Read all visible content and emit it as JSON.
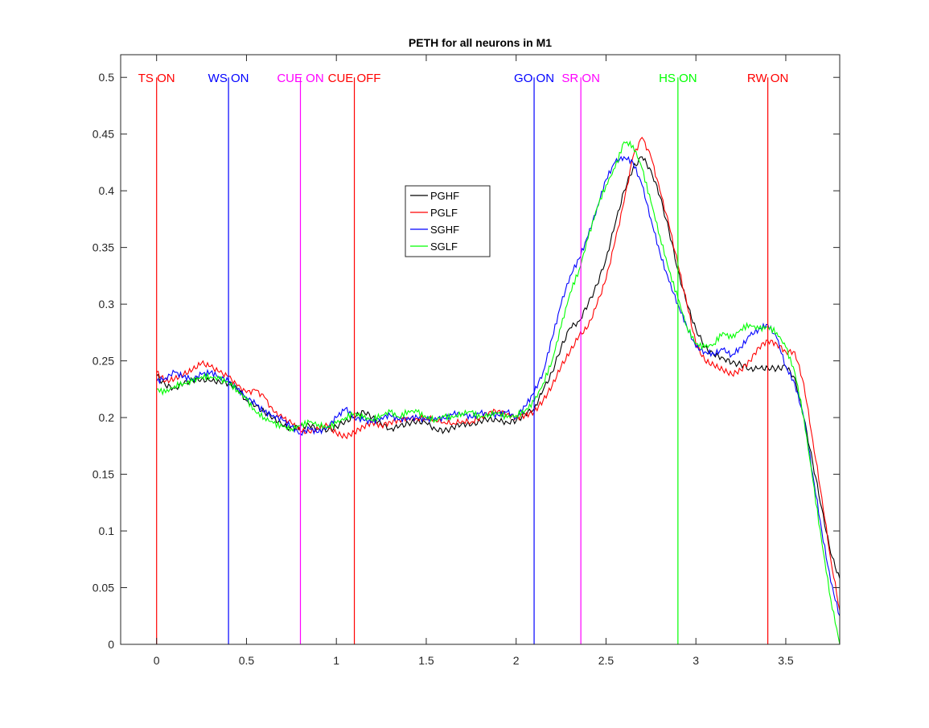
{
  "chart_data": {
    "type": "line",
    "title": "PETH for all neurons in M1",
    "xlabel": "",
    "ylabel": "",
    "xlim": [
      -0.2,
      3.8
    ],
    "ylim": [
      0,
      0.52
    ],
    "xticks": [
      0,
      0.5,
      1,
      1.5,
      2,
      2.5,
      3,
      3.5
    ],
    "xtick_labels": [
      "0",
      "0.5",
      "1",
      "1.5",
      "2",
      "2.5",
      "3",
      "3.5"
    ],
    "yticks": [
      0,
      0.05,
      0.1,
      0.15,
      0.2,
      0.25,
      0.3,
      0.35,
      0.4,
      0.45,
      0.5
    ],
    "ytick_labels": [
      "0",
      "0.05",
      "0.1",
      "0.15",
      "0.2",
      "0.25",
      "0.3",
      "0.35",
      "0.4",
      "0.45",
      "0.5"
    ],
    "grid": false,
    "legend_position": "upper-center",
    "event_markers": [
      {
        "label": "TS ON",
        "x": 0.0,
        "color": "#ff0000"
      },
      {
        "label": "WS ON",
        "x": 0.4,
        "color": "#0000ff"
      },
      {
        "label": "CUE ON",
        "x": 0.8,
        "color": "#ff00ff"
      },
      {
        "label": "CUE OFF",
        "x": 1.1,
        "color": "#ff0000"
      },
      {
        "label": "GO ON",
        "x": 2.1,
        "color": "#0000ff"
      },
      {
        "label": "SR ON",
        "x": 2.36,
        "color": "#ff00ff"
      },
      {
        "label": "HS ON",
        "x": 2.9,
        "color": "#00ff00"
      },
      {
        "label": "RW ON",
        "x": 3.4,
        "color": "#ff0000"
      }
    ],
    "series": [
      {
        "name": "PGHF",
        "color": "#000000",
        "x": [
          0.0,
          0.05,
          0.1,
          0.15,
          0.2,
          0.25,
          0.3,
          0.35,
          0.4,
          0.45,
          0.5,
          0.55,
          0.6,
          0.65,
          0.7,
          0.75,
          0.8,
          0.85,
          0.9,
          0.95,
          1.0,
          1.05,
          1.1,
          1.15,
          1.2,
          1.25,
          1.3,
          1.35,
          1.4,
          1.45,
          1.5,
          1.55,
          1.6,
          1.65,
          1.7,
          1.75,
          1.8,
          1.85,
          1.9,
          1.95,
          2.0,
          2.05,
          2.1,
          2.15,
          2.2,
          2.25,
          2.3,
          2.35,
          2.4,
          2.45,
          2.5,
          2.55,
          2.6,
          2.65,
          2.7,
          2.75,
          2.8,
          2.85,
          2.9,
          2.95,
          3.0,
          3.05,
          3.1,
          3.15,
          3.2,
          3.25,
          3.3,
          3.35,
          3.4,
          3.45,
          3.5,
          3.55,
          3.6,
          3.65,
          3.7,
          3.75,
          3.8
        ],
        "values": [
          0.237,
          0.228,
          0.226,
          0.23,
          0.233,
          0.234,
          0.232,
          0.232,
          0.23,
          0.225,
          0.215,
          0.21,
          0.205,
          0.2,
          0.193,
          0.19,
          0.192,
          0.193,
          0.19,
          0.188,
          0.192,
          0.197,
          0.2,
          0.206,
          0.2,
          0.194,
          0.19,
          0.192,
          0.195,
          0.197,
          0.195,
          0.19,
          0.188,
          0.191,
          0.195,
          0.193,
          0.197,
          0.199,
          0.197,
          0.196,
          0.197,
          0.203,
          0.208,
          0.224,
          0.24,
          0.262,
          0.279,
          0.285,
          0.3,
          0.317,
          0.34,
          0.37,
          0.4,
          0.42,
          0.43,
          0.418,
          0.395,
          0.365,
          0.33,
          0.3,
          0.278,
          0.262,
          0.255,
          0.253,
          0.248,
          0.247,
          0.243,
          0.243,
          0.244,
          0.243,
          0.245,
          0.235,
          0.2,
          0.16,
          0.12,
          0.08,
          0.058
        ]
      },
      {
        "name": "PGLF",
        "color": "#ff0000",
        "x": [
          0.0,
          0.05,
          0.1,
          0.15,
          0.2,
          0.25,
          0.3,
          0.35,
          0.4,
          0.45,
          0.5,
          0.55,
          0.6,
          0.65,
          0.7,
          0.75,
          0.8,
          0.85,
          0.9,
          0.95,
          1.0,
          1.05,
          1.1,
          1.15,
          1.2,
          1.25,
          1.3,
          1.35,
          1.4,
          1.45,
          1.5,
          1.55,
          1.6,
          1.65,
          1.7,
          1.75,
          1.8,
          1.85,
          1.9,
          1.95,
          2.0,
          2.05,
          2.1,
          2.15,
          2.2,
          2.25,
          2.3,
          2.35,
          2.4,
          2.45,
          2.5,
          2.55,
          2.6,
          2.65,
          2.7,
          2.75,
          2.8,
          2.85,
          2.9,
          2.95,
          3.0,
          3.05,
          3.1,
          3.15,
          3.2,
          3.25,
          3.3,
          3.35,
          3.4,
          3.45,
          3.5,
          3.55,
          3.6,
          3.65,
          3.7,
          3.75,
          3.8
        ],
        "values": [
          0.24,
          0.232,
          0.234,
          0.238,
          0.242,
          0.248,
          0.245,
          0.24,
          0.236,
          0.228,
          0.222,
          0.224,
          0.218,
          0.205,
          0.2,
          0.195,
          0.188,
          0.187,
          0.19,
          0.193,
          0.186,
          0.183,
          0.187,
          0.192,
          0.196,
          0.193,
          0.196,
          0.198,
          0.2,
          0.199,
          0.2,
          0.198,
          0.196,
          0.195,
          0.197,
          0.196,
          0.2,
          0.205,
          0.206,
          0.203,
          0.2,
          0.202,
          0.205,
          0.215,
          0.228,
          0.245,
          0.258,
          0.272,
          0.28,
          0.3,
          0.322,
          0.355,
          0.39,
          0.43,
          0.447,
          0.43,
          0.4,
          0.37,
          0.335,
          0.3,
          0.265,
          0.25,
          0.246,
          0.242,
          0.238,
          0.242,
          0.25,
          0.262,
          0.268,
          0.265,
          0.258,
          0.258,
          0.23,
          0.18,
          0.13,
          0.075,
          0.03
        ]
      },
      {
        "name": "SGHF",
        "color": "#0000ff",
        "x": [
          0.0,
          0.05,
          0.1,
          0.15,
          0.2,
          0.25,
          0.3,
          0.35,
          0.4,
          0.45,
          0.5,
          0.55,
          0.6,
          0.65,
          0.7,
          0.75,
          0.8,
          0.85,
          0.9,
          0.95,
          1.0,
          1.05,
          1.1,
          1.15,
          1.2,
          1.25,
          1.3,
          1.35,
          1.4,
          1.45,
          1.5,
          1.55,
          1.6,
          1.65,
          1.7,
          1.75,
          1.8,
          1.85,
          1.9,
          1.95,
          2.0,
          2.05,
          2.1,
          2.15,
          2.2,
          2.25,
          2.3,
          2.35,
          2.4,
          2.45,
          2.5,
          2.55,
          2.6,
          2.65,
          2.7,
          2.75,
          2.8,
          2.85,
          2.9,
          2.95,
          3.0,
          3.05,
          3.1,
          3.15,
          3.2,
          3.25,
          3.3,
          3.35,
          3.4,
          3.45,
          3.5,
          3.55,
          3.6,
          3.65,
          3.7,
          3.75,
          3.8
        ],
        "values": [
          0.232,
          0.235,
          0.24,
          0.236,
          0.234,
          0.238,
          0.24,
          0.236,
          0.232,
          0.225,
          0.218,
          0.212,
          0.205,
          0.202,
          0.198,
          0.192,
          0.186,
          0.19,
          0.187,
          0.192,
          0.2,
          0.208,
          0.2,
          0.198,
          0.196,
          0.2,
          0.202,
          0.198,
          0.2,
          0.2,
          0.198,
          0.2,
          0.199,
          0.203,
          0.204,
          0.2,
          0.204,
          0.203,
          0.202,
          0.205,
          0.2,
          0.21,
          0.222,
          0.24,
          0.27,
          0.3,
          0.325,
          0.34,
          0.36,
          0.385,
          0.41,
          0.425,
          0.43,
          0.425,
          0.405,
          0.375,
          0.345,
          0.32,
          0.3,
          0.28,
          0.262,
          0.258,
          0.256,
          0.26,
          0.255,
          0.262,
          0.272,
          0.278,
          0.282,
          0.27,
          0.245,
          0.23,
          0.2,
          0.15,
          0.1,
          0.055,
          0.025
        ]
      },
      {
        "name": "SGLF",
        "color": "#00ff00",
        "x": [
          0.0,
          0.05,
          0.1,
          0.15,
          0.2,
          0.25,
          0.3,
          0.35,
          0.4,
          0.45,
          0.5,
          0.55,
          0.6,
          0.65,
          0.7,
          0.75,
          0.8,
          0.85,
          0.9,
          0.95,
          1.0,
          1.05,
          1.1,
          1.15,
          1.2,
          1.25,
          1.3,
          1.35,
          1.4,
          1.45,
          1.5,
          1.55,
          1.6,
          1.65,
          1.7,
          1.75,
          1.8,
          1.85,
          1.9,
          1.95,
          2.0,
          2.05,
          2.1,
          2.15,
          2.2,
          2.25,
          2.3,
          2.35,
          2.4,
          2.45,
          2.5,
          2.55,
          2.6,
          2.65,
          2.7,
          2.75,
          2.8,
          2.85,
          2.9,
          2.95,
          3.0,
          3.05,
          3.1,
          3.15,
          3.2,
          3.25,
          3.3,
          3.35,
          3.4,
          3.45,
          3.5,
          3.55,
          3.6,
          3.65,
          3.7,
          3.75,
          3.8
        ],
        "values": [
          0.225,
          0.222,
          0.228,
          0.23,
          0.232,
          0.236,
          0.236,
          0.234,
          0.231,
          0.224,
          0.216,
          0.205,
          0.2,
          0.195,
          0.192,
          0.19,
          0.193,
          0.196,
          0.194,
          0.191,
          0.195,
          0.2,
          0.204,
          0.2,
          0.198,
          0.202,
          0.205,
          0.2,
          0.206,
          0.205,
          0.2,
          0.198,
          0.201,
          0.2,
          0.204,
          0.205,
          0.2,
          0.203,
          0.204,
          0.2,
          0.202,
          0.206,
          0.214,
          0.23,
          0.25,
          0.28,
          0.31,
          0.33,
          0.358,
          0.385,
          0.405,
          0.42,
          0.443,
          0.44,
          0.42,
          0.39,
          0.36,
          0.33,
          0.305,
          0.28,
          0.265,
          0.262,
          0.265,
          0.275,
          0.27,
          0.278,
          0.282,
          0.278,
          0.28,
          0.275,
          0.262,
          0.24,
          0.2,
          0.145,
          0.09,
          0.04,
          0.0
        ]
      }
    ]
  }
}
